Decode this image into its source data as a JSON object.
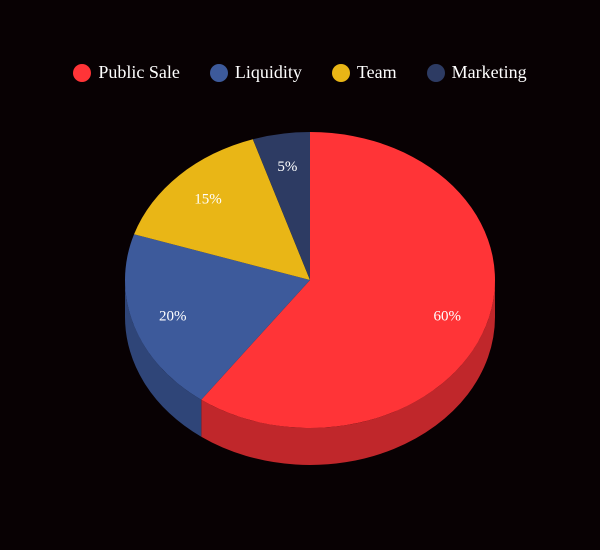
{
  "chart_data": {
    "type": "pie",
    "style": "3d",
    "legend_position": "top",
    "categories": [
      "Public Sale",
      "Liquidity",
      "Team",
      "Marketing"
    ],
    "values": [
      60,
      20,
      15,
      5
    ],
    "labels": [
      "60%",
      "20%",
      "15%",
      "5%"
    ],
    "colors": [
      "#ff3437",
      "#3d5a9b",
      "#e9b616",
      "#2d3b63"
    ],
    "side_colors": [
      "#c0272b",
      "#2f4578",
      "#b38c10",
      "#222d4b"
    ]
  }
}
